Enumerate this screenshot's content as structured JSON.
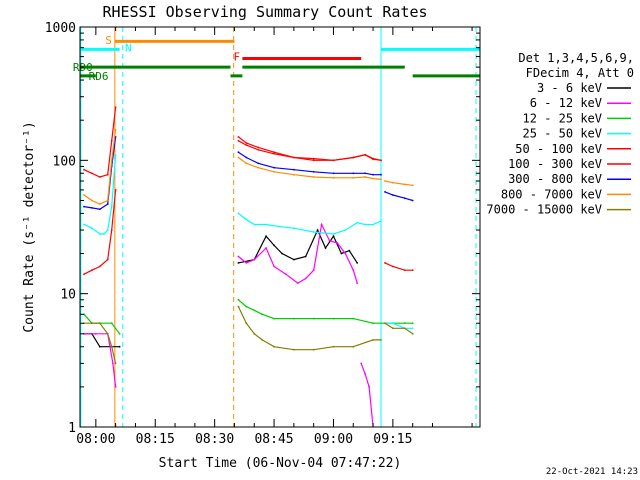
{
  "chart_data": {
    "type": "line",
    "title": "RHESSI Observing Summary Count Rates",
    "xlabel": "Start Time (06-Nov-04 07:47:22)",
    "ylabel": "Count Rate (s⁻¹ detector⁻¹)",
    "yscale": "log",
    "ylim": [
      1,
      1000
    ],
    "xlim_minutes": [
      -4,
      97
    ],
    "x_ticks": [
      {
        "m": 0,
        "label": "08:00"
      },
      {
        "m": 15,
        "label": "08:15"
      },
      {
        "m": 30,
        "label": "08:30"
      },
      {
        "m": 45,
        "label": "08:45"
      },
      {
        "m": 60,
        "label": "09:00"
      },
      {
        "m": 75,
        "label": "09:15"
      }
    ],
    "y_ticks": [
      {
        "v": 1,
        "label": "1"
      },
      {
        "v": 10,
        "label": "10"
      },
      {
        "v": 100,
        "label": "100"
      },
      {
        "v": 1000,
        "label": "1000"
      }
    ],
    "legend_header": [
      "Det 1,3,4,5,6,9,",
      "FDecim 4, Att 0"
    ],
    "legend_position": "right",
    "series": [
      {
        "name": "3 - 6 keV",
        "color": "#000000",
        "segments": [
          {
            "x": [
              -3,
              -1,
              1,
              4,
              6
            ],
            "y": [
              5,
              5,
              4,
              4,
              4
            ]
          },
          {
            "x": [
              36,
              40,
              43,
              45,
              47,
              50,
              53,
              56,
              58,
              60,
              62,
              64,
              66
            ],
            "y": [
              17,
              18,
              27,
              23,
              20,
              18,
              19,
              30,
              22,
              27,
              20,
              21,
              17
            ]
          }
        ]
      },
      {
        "name": "6 - 12 keV",
        "color": "#ff00ff",
        "segments": [
          {
            "x": [
              -3,
              0,
              3,
              4.3,
              5
            ],
            "y": [
              5,
              5,
              5,
              3,
              2
            ]
          },
          {
            "x": [
              36,
              38,
              40,
              43,
              45,
              48,
              51,
              53,
              55,
              57,
              59,
              61,
              63,
              65,
              66
            ],
            "y": [
              19,
              17,
              18,
              22,
              16,
              14,
              12,
              13,
              15,
              33,
              25,
              24,
              20,
              15,
              12
            ]
          },
          {
            "x": [
              67,
              68,
              69,
              70
            ],
            "y": [
              3,
              2.5,
              2,
              1
            ]
          }
        ]
      },
      {
        "name": "12 - 25 keV",
        "color": "#00cc00",
        "segments": [
          {
            "x": [
              -3,
              -1,
              1,
              4,
              6
            ],
            "y": [
              7,
              6,
              6,
              6,
              5
            ]
          },
          {
            "x": [
              36,
              38,
              40,
              42,
              45,
              50,
              55,
              60,
              65,
              70,
              75,
              78,
              80
            ],
            "y": [
              9,
              8,
              7.5,
              7,
              6.5,
              6.5,
              6.5,
              6.5,
              6.5,
              6,
              6,
              6,
              6
            ]
          }
        ]
      },
      {
        "name": "25 - 50 keV",
        "color": "#00ffff",
        "segments": [
          {
            "x": [
              -3,
              -1,
              1,
              2,
              3,
              4,
              5
            ],
            "y": [
              33,
              31,
              28,
              28,
              30,
              45,
              110
            ]
          },
          {
            "x": [
              36,
              38,
              40,
              43,
              46,
              50,
              55,
              60,
              63,
              66,
              68,
              70,
              72
            ],
            "y": [
              40,
              36,
              33,
              33,
              32,
              31,
              29,
              28,
              30,
              34,
              33,
              33,
              35
            ]
          },
          {
            "x": [
              73,
              75,
              78,
              80
            ],
            "y": [
              6,
              6,
              5.5,
              5.5
            ]
          }
        ]
      },
      {
        "name": "50 - 100 keV",
        "color": "#ff0000",
        "segments": [
          {
            "x": [
              -3,
              -1,
              1,
              3,
              4,
              5
            ],
            "y": [
              14,
              15,
              16,
              18,
              30,
              60
            ]
          },
          {
            "x": [
              36,
              38,
              41,
              45,
              50,
              55,
              60,
              65,
              68,
              70,
              72
            ],
            "y": [
              140,
              130,
              120,
              112,
              105,
              103,
              100,
              105,
              110,
              102,
              100
            ]
          },
          {
            "x": [
              73,
              75,
              78,
              80
            ],
            "y": [
              17,
              16,
              15,
              15
            ]
          }
        ]
      },
      {
        "name": "100 - 300 keV",
        "color": "#ff0000",
        "segments": [
          {
            "x": [
              -3,
              -1,
              1,
              3,
              4,
              5
            ],
            "y": [
              85,
              80,
              75,
              78,
              140,
              250
            ]
          },
          {
            "x": [
              36,
              38,
              41,
              45,
              50,
              55,
              60,
              65,
              68,
              70,
              72
            ],
            "y": [
              150,
              135,
              125,
              115,
              105,
              100,
              100,
              105,
              110,
              103,
              100
            ]
          }
        ]
      },
      {
        "name": "300 - 800 keV",
        "color": "#0000ff",
        "segments": [
          {
            "x": [
              -3,
              -1,
              1,
              3,
              4,
              5
            ],
            "y": [
              45,
              44,
              43,
              47,
              90,
              150
            ]
          },
          {
            "x": [
              36,
              38,
              41,
              45,
              50,
              55,
              60,
              65,
              68,
              70,
              72
            ],
            "y": [
              115,
              105,
              95,
              88,
              85,
              82,
              80,
              80,
              80,
              78,
              78
            ]
          },
          {
            "x": [
              73,
              75,
              78,
              80
            ],
            "y": [
              58,
              55,
              52,
              50
            ]
          }
        ]
      },
      {
        "name": "800 - 7000 keV",
        "color": "#ff8c00",
        "segments": [
          {
            "x": [
              -3,
              -1,
              1,
              3,
              4,
              5
            ],
            "y": [
              55,
              50,
              47,
              50,
              100,
              170
            ]
          },
          {
            "x": [
              36,
              38,
              41,
              45,
              50,
              55,
              60,
              65,
              68,
              70,
              72
            ],
            "y": [
              105,
              95,
              88,
              82,
              78,
              75,
              74,
              74,
              75,
              73,
              72
            ]
          },
          {
            "x": [
              73,
              75,
              78,
              80
            ],
            "y": [
              70,
              68,
              66,
              65
            ]
          }
        ]
      },
      {
        "name": "7000 - 15000 keV",
        "color": "#808000",
        "segments": [
          {
            "x": [
              -3,
              -1,
              1,
              3,
              4,
              5
            ],
            "y": [
              6,
              6,
              6,
              5,
              4,
              3
            ]
          },
          {
            "x": [
              36,
              38,
              40,
              42,
              45,
              50,
              55,
              60,
              65,
              70,
              72
            ],
            "y": [
              8,
              6,
              5,
              4.5,
              4,
              3.8,
              3.8,
              4,
              4,
              4.5,
              4.5
            ]
          },
          {
            "x": [
              73,
              75,
              78,
              80
            ],
            "y": [
              6,
              5.5,
              5.5,
              5
            ]
          }
        ]
      }
    ],
    "state_bars": [
      {
        "label": "S",
        "color": "#ff8c00",
        "y": 780,
        "x1": 4.8,
        "x2": 35
      },
      {
        "label": "N",
        "color": "#00ffff",
        "y": 680,
        "x1": -4,
        "x2": 6
      },
      {
        "label": "N",
        "color": "#00ffff",
        "y": 680,
        "x1": 72,
        "x2": 97
      },
      {
        "label": "F",
        "color": "#ff0000",
        "y": 580,
        "x1": 37,
        "x2": 67
      },
      {
        "label": "RD0",
        "color": "#008000",
        "y": 500,
        "x1": -4,
        "x2": 34
      },
      {
        "label": "RD0",
        "color": "#008000",
        "y": 500,
        "x1": 37,
        "x2": 78
      },
      {
        "label": "RD6",
        "color": "#008000",
        "y": 430,
        "x1": -4,
        "x2": 0
      },
      {
        "label": "RD6",
        "color": "#008000",
        "y": 430,
        "x1": 34,
        "x2": 37
      },
      {
        "label": "RD6",
        "color": "#008000",
        "y": 430,
        "x1": 80,
        "x2": 97
      }
    ],
    "vlines": [
      {
        "x": 4.8,
        "color": "#ff8c00",
        "dashed": false
      },
      {
        "x": 6.8,
        "color": "#00ffff",
        "dashed": true
      },
      {
        "x": 34.8,
        "color": "#ff8c00",
        "dashed": true
      },
      {
        "x": 72,
        "color": "#00ffff",
        "dashed": false
      },
      {
        "x": -3.8,
        "color": "#00ffff",
        "dashed": false
      },
      {
        "x": 96,
        "color": "#00ffff",
        "dashed": true
      }
    ],
    "state_labels": {
      "S": "S",
      "N": "N",
      "F": "F",
      "RD0": "RD0",
      "RD6": "RD6"
    },
    "footer_date": "22-Oct-2021 14:23"
  }
}
